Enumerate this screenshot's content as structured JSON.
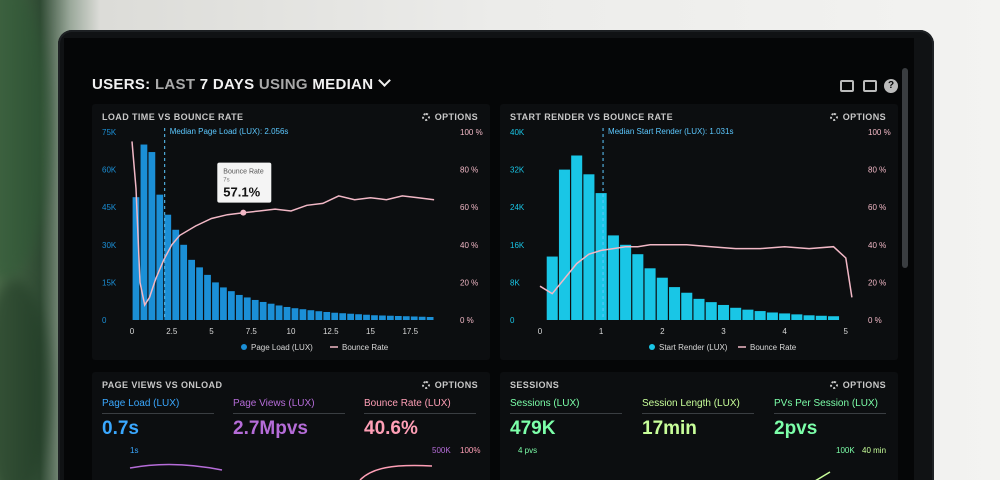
{
  "header": {
    "prefix": "USERS:",
    "range": "LAST",
    "days": "7 DAYS",
    "using": "USING",
    "stat": "MEDIAN"
  },
  "options_label": "OPTIONS",
  "icons": [
    "monitor-icon",
    "image-icon",
    "help-icon"
  ],
  "help_glyph": "?",
  "colors": {
    "bar_blue": "#1b8fd6",
    "bar_cyan": "#19c6e6",
    "bounce_pink": "#f2b8c6",
    "session_green": "#7cffa9",
    "text_blue": "#3aa8ff",
    "text_purple": "#b56cd8",
    "text_pink": "#ff9fb6"
  },
  "load_panel": {
    "title": "LOAD TIME VS BOUNCE RATE",
    "median_label": "Median Page Load (LUX): 2.056s",
    "tooltip": {
      "label": "Bounce Rate",
      "sub": "7s",
      "value": "57.1%"
    },
    "legend": [
      "Page Load (LUX)",
      "Bounce Rate"
    ]
  },
  "render_panel": {
    "title": "START RENDER VS BOUNCE RATE",
    "median_label": "Median Start Render (LUX): 1.031s",
    "legend": [
      "Start Render (LUX)",
      "Bounce Rate"
    ]
  },
  "pageviews_panel": {
    "title": "PAGE VIEWS VS ONLOAD",
    "metrics": [
      {
        "label": "Page Load (LUX)",
        "value": "0.7s"
      },
      {
        "label": "Page Views (LUX)",
        "value": "2.7Mpvs"
      },
      {
        "label": "Bounce Rate (LUX)",
        "value": "40.6%"
      }
    ],
    "sub_left": "1s",
    "sub_right_a": "500K",
    "sub_right_b": "100%"
  },
  "sessions_panel": {
    "title": "SESSIONS",
    "metrics": [
      {
        "label": "Sessions (LUX)",
        "value": "479K"
      },
      {
        "label": "Session Length (LUX)",
        "value": "17min"
      },
      {
        "label": "PVs Per Session (LUX)",
        "value": "2pvs"
      }
    ],
    "sub_left": "4 pvs",
    "sub_right_a": "100K",
    "sub_right_b": "40 min"
  },
  "chart_data": [
    {
      "type": "bar",
      "title": "LOAD TIME VS BOUNCE RATE",
      "x_ticks": [
        "0",
        "2.5",
        "5",
        "7.5",
        "10",
        "12.5",
        "15",
        "17.5"
      ],
      "x_range": [
        0,
        20
      ],
      "y_left_ticks": [
        "0",
        "15K",
        "30K",
        "45K",
        "60K",
        "75K"
      ],
      "y_left_range": [
        0,
        75000
      ],
      "y_right_ticks": [
        "0 %",
        "20 %",
        "40 %",
        "60 %",
        "80 %",
        "100 %"
      ],
      "y_right_range": [
        0,
        100
      ],
      "grid": false,
      "legend_position": "bottom",
      "series": [
        {
          "name": "Page Load (LUX)",
          "type": "bar",
          "bin_width": 0.5,
          "x_start": 0,
          "values": [
            49000,
            70000,
            67000,
            50000,
            42000,
            36000,
            30000,
            24000,
            21000,
            18000,
            15000,
            13000,
            11500,
            10000,
            9000,
            8000,
            7200,
            6500,
            5800,
            5200,
            4700,
            4300,
            3900,
            3500,
            3200,
            2900,
            2700,
            2500,
            2300,
            2100,
            1900,
            1800,
            1700,
            1600,
            1500,
            1400,
            1300,
            1200
          ]
        },
        {
          "name": "Bounce Rate",
          "type": "line",
          "x": [
            0,
            0.25,
            0.5,
            0.8,
            1.1,
            1.5,
            2.0,
            2.5,
            3.0,
            4.0,
            5.0,
            6.0,
            7.0,
            8.0,
            9.0,
            10.0,
            11.0,
            12.0,
            13.0,
            14.0,
            15.0,
            16.0,
            17.0,
            18.0,
            19.0
          ],
          "y": [
            95,
            70,
            20,
            8,
            12,
            22,
            32,
            40,
            45,
            50,
            54,
            56,
            57.1,
            58,
            59,
            58,
            61,
            62,
            66,
            64,
            65,
            64,
            66,
            65,
            64
          ]
        }
      ],
      "annotations": [
        {
          "text": "Median Page Load (LUX): 2.056s",
          "x": 2.056
        },
        {
          "text": "Bounce Rate 7s 57.1%",
          "x": 7,
          "y": 57.1
        }
      ]
    },
    {
      "type": "bar",
      "title": "START RENDER VS BOUNCE RATE",
      "x_ticks": [
        "0",
        "1",
        "2",
        "3",
        "4",
        "5"
      ],
      "x_range": [
        0,
        5.2
      ],
      "y_left_ticks": [
        "0",
        "8K",
        "16K",
        "24K",
        "32K",
        "40K"
      ],
      "y_left_range": [
        0,
        40000
      ],
      "y_right_ticks": [
        "0 %",
        "20 %",
        "40 %",
        "60 %",
        "80 %",
        "100 %"
      ],
      "y_right_range": [
        0,
        100
      ],
      "grid": false,
      "legend_position": "bottom",
      "series": [
        {
          "name": "Start Render (LUX)",
          "type": "bar",
          "bin_width": 0.2,
          "x_start": 0.1,
          "values": [
            13500,
            32000,
            35000,
            31000,
            27000,
            18000,
            16000,
            14000,
            11000,
            9000,
            7000,
            5800,
            4500,
            3800,
            3200,
            2600,
            2200,
            1900,
            1600,
            1400,
            1200,
            1000,
            900,
            800
          ]
        },
        {
          "name": "Bounce Rate",
          "type": "line",
          "x": [
            0,
            0.2,
            0.4,
            0.6,
            0.8,
            1.0,
            1.2,
            1.4,
            1.6,
            1.8,
            2.0,
            2.4,
            2.8,
            3.2,
            3.6,
            4.0,
            4.4,
            4.8,
            5.0,
            5.1
          ],
          "y": [
            18,
            14,
            22,
            30,
            35,
            37,
            38,
            39,
            39,
            40,
            40,
            40,
            39,
            38,
            38,
            39,
            38,
            39,
            33,
            12
          ]
        }
      ],
      "annotations": [
        {
          "text": "Median Start Render (LUX): 1.031s",
          "x": 1.031
        }
      ]
    }
  ]
}
